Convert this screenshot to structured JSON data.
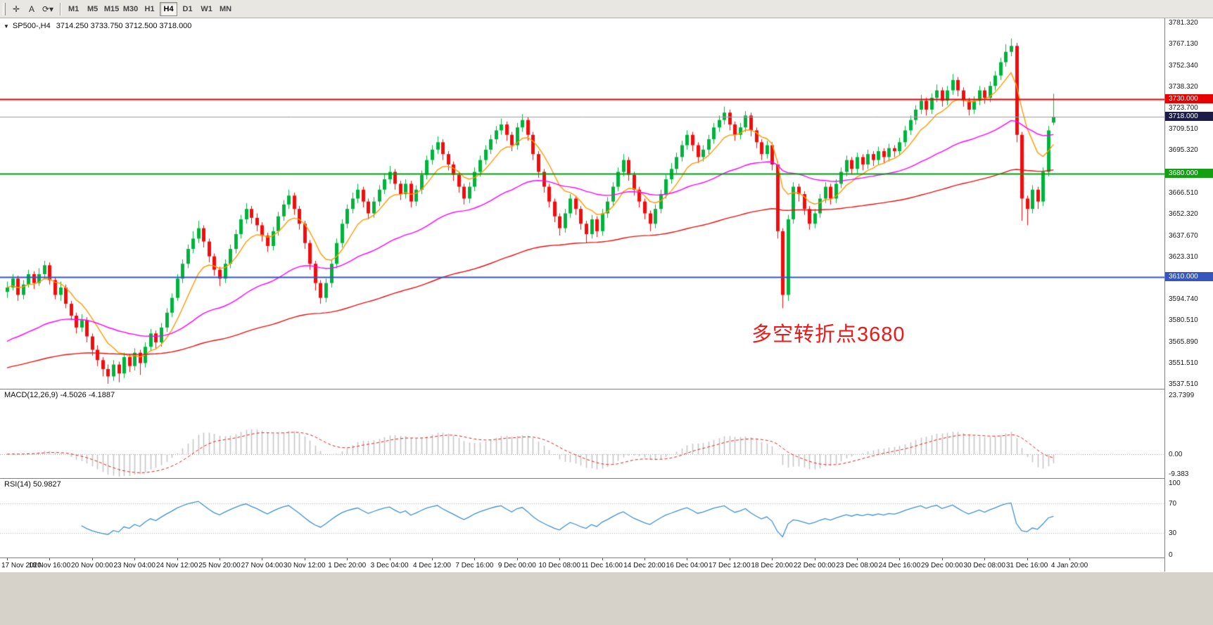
{
  "toolbar": {
    "tools": [
      {
        "name": "crosshair-icon",
        "glyph": "✛"
      },
      {
        "name": "text-tool-icon",
        "glyph": "A"
      },
      {
        "name": "cycles-icon",
        "glyph": "⟳▾"
      }
    ],
    "timeframes": [
      {
        "label": "M1",
        "active": false
      },
      {
        "label": "M5",
        "active": false
      },
      {
        "label": "M15",
        "active": false
      },
      {
        "label": "M30",
        "active": false
      },
      {
        "label": "H1",
        "active": false
      },
      {
        "label": "H4",
        "active": true
      },
      {
        "label": "D1",
        "active": false
      },
      {
        "label": "W1",
        "active": false
      },
      {
        "label": "MN",
        "active": false
      }
    ]
  },
  "chart": {
    "header": {
      "arrow": "▼",
      "symbol": "SP500-,H4",
      "ohlc": "3714.250 3733.750 3712.500 3718.000"
    },
    "annotation": {
      "text": "多空转折点3680",
      "color": "#f31616"
    }
  },
  "panels": {
    "macd": {
      "label": "MACD(12,26,9) -4.5026 -4.1887",
      "axis": [
        {
          "text": "23.7399",
          "value": 23.7399
        },
        {
          "text": "0.00",
          "value": 0
        },
        {
          "text": "-9.383",
          "value": -9.383
        }
      ]
    },
    "rsi": {
      "label": "RSI(14) 50.9827",
      "axis": [
        {
          "text": "100",
          "value": 100
        },
        {
          "text": "70",
          "value": 70
        },
        {
          "text": "30",
          "value": 30
        },
        {
          "text": "0",
          "value": 0
        }
      ]
    }
  },
  "time_axis": [
    "17 Nov 2020",
    "18 Nov 16:00",
    "20 Nov 00:00",
    "23 Nov 04:00",
    "24 Nov 12:00",
    "25 Nov 20:00",
    "27 Nov 04:00",
    "30 Nov 12:00",
    "1 Dec 20:00",
    "3 Dec 04:00",
    "4 Dec 12:00",
    "7 Dec 16:00",
    "9 Dec 00:00",
    "10 Dec 08:00",
    "11 Dec 16:00",
    "14 Dec 20:00",
    "16 Dec 04:00",
    "17 Dec 12:00",
    "18 Dec 20:00",
    "22 Dec 00:00",
    "23 Dec 08:00",
    "24 Dec 16:00",
    "29 Dec 00:00",
    "30 Dec 08:00",
    "31 Dec 16:00",
    "4 Jan 20:00"
  ],
  "chart_data": {
    "type": "candlestick",
    "symbol": "SP500-",
    "timeframe": "H4",
    "last_bar": {
      "open": 3714.25,
      "high": 3733.75,
      "low": 3712.5,
      "close": 3718.0
    },
    "y_range": [
      3537.51,
      3781.32
    ],
    "y_axis_ticks": [
      {
        "text": "3781.320",
        "value": 3781.32
      },
      {
        "text": "3767.130",
        "value": 3767.13
      },
      {
        "text": "3752.340",
        "value": 3752.34
      },
      {
        "text": "3738.320",
        "value": 3738.32
      },
      {
        "text": "3723.700",
        "value": 3723.7
      },
      {
        "text": "3709.510",
        "value": 3709.51
      },
      {
        "text": "3695.320",
        "value": 3695.32
      },
      {
        "text": "3666.510",
        "value": 3666.51
      },
      {
        "text": "3652.320",
        "value": 3652.32
      },
      {
        "text": "3637.670",
        "value": 3637.67
      },
      {
        "text": "3623.310",
        "value": 3623.31
      },
      {
        "text": "3594.740",
        "value": 3594.74
      },
      {
        "text": "3580.510",
        "value": 3580.51
      },
      {
        "text": "3565.890",
        "value": 3565.89
      },
      {
        "text": "3551.510",
        "value": 3551.51
      },
      {
        "text": "3537.510",
        "value": 3537.51
      }
    ],
    "levels": [
      {
        "price": 3730.0,
        "badge": "3730.000",
        "line_color": "#e60000",
        "badge_bg": "#e60000",
        "width": 2
      },
      {
        "price": 3718.0,
        "badge": "3718.000",
        "line_color": "#9a9a9a",
        "badge_bg": "#1c1c46",
        "width": 1
      },
      {
        "price": 3680.0,
        "badge": "3680.000",
        "line_color": "#00a012",
        "badge_bg": "#12a012",
        "width": 2
      },
      {
        "price": 3610.0,
        "badge": "3610.000",
        "line_color": "#3456bd",
        "badge_bg": "#3456bd",
        "width": 2
      }
    ],
    "colors": {
      "up": "#00b33c",
      "down": "#f20c0c",
      "ma_fast": "#ff9900",
      "ma_mid": "#ff00ff",
      "ma_slow": "#e81010",
      "macd_hist": "#c6c6c6",
      "macd_signal": "#e02020",
      "rsi_line": "#3f8fd0",
      "dotted_level": "#b4b4b4"
    },
    "indicators": [
      {
        "name": "MACD",
        "params": [
          12,
          26,
          9
        ],
        "current": [
          -4.5026,
          -4.1887
        ]
      },
      {
        "name": "RSI",
        "params": [
          14
        ],
        "current": 50.9827
      }
    ],
    "candles": [
      [
        3600,
        3607,
        3596,
        3603
      ],
      [
        3603,
        3612,
        3601,
        3609
      ],
      [
        3609,
        3611,
        3594,
        3598
      ],
      [
        3598,
        3608,
        3595,
        3605
      ],
      [
        3605,
        3615,
        3603,
        3612
      ],
      [
        3612,
        3614,
        3602,
        3606
      ],
      [
        3606,
        3616,
        3604,
        3612
      ],
      [
        3612,
        3621,
        3609,
        3618
      ],
      [
        3618,
        3620,
        3605,
        3608
      ],
      [
        3608,
        3610,
        3595,
        3598
      ],
      [
        3598,
        3607,
        3594,
        3603
      ],
      [
        3603,
        3605,
        3589,
        3592
      ],
      [
        3592,
        3594,
        3581,
        3584
      ],
      [
        3584,
        3586,
        3572,
        3576
      ],
      [
        3576,
        3585,
        3573,
        3581
      ],
      [
        3581,
        3583,
        3566,
        3570
      ],
      [
        3570,
        3572,
        3557,
        3561
      ],
      [
        3561,
        3564,
        3550,
        3554
      ],
      [
        3554,
        3556,
        3543,
        3548
      ],
      [
        3548,
        3551,
        3538,
        3543
      ],
      [
        3543,
        3554,
        3540,
        3551
      ],
      [
        3551,
        3553,
        3539,
        3545
      ],
      [
        3545,
        3559,
        3542,
        3556
      ],
      [
        3556,
        3558,
        3546,
        3550
      ],
      [
        3550,
        3562,
        3547,
        3559
      ],
      [
        3559,
        3561,
        3544,
        3552
      ],
      [
        3552,
        3566,
        3549,
        3563
      ],
      [
        3563,
        3575,
        3560,
        3572
      ],
      [
        3572,
        3574,
        3562,
        3566
      ],
      [
        3566,
        3579,
        3563,
        3576
      ],
      [
        3576,
        3589,
        3573,
        3586
      ],
      [
        3586,
        3599,
        3583,
        3596
      ],
      [
        3596,
        3612,
        3594,
        3609
      ],
      [
        3609,
        3622,
        3606,
        3619
      ],
      [
        3619,
        3632,
        3616,
        3629
      ],
      [
        3629,
        3641,
        3626,
        3636
      ],
      [
        3636,
        3648,
        3633,
        3643
      ],
      [
        3643,
        3645,
        3630,
        3634
      ],
      [
        3634,
        3636,
        3620,
        3624
      ],
      [
        3624,
        3626,
        3611,
        3615
      ],
      [
        3615,
        3617,
        3604,
        3609
      ],
      [
        3609,
        3622,
        3606,
        3619
      ],
      [
        3619,
        3632,
        3616,
        3629
      ],
      [
        3629,
        3642,
        3626,
        3639
      ],
      [
        3639,
        3652,
        3636,
        3649
      ],
      [
        3649,
        3660,
        3646,
        3656
      ],
      [
        3656,
        3658,
        3646,
        3650
      ],
      [
        3650,
        3653,
        3641,
        3645
      ],
      [
        3645,
        3647,
        3634,
        3638
      ],
      [
        3638,
        3640,
        3627,
        3631
      ],
      [
        3631,
        3644,
        3628,
        3641
      ],
      [
        3641,
        3654,
        3638,
        3651
      ],
      [
        3651,
        3662,
        3648,
        3659
      ],
      [
        3659,
        3669,
        3656,
        3665
      ],
      [
        3665,
        3667,
        3652,
        3656
      ],
      [
        3656,
        3658,
        3642,
        3646
      ],
      [
        3646,
        3648,
        3629,
        3633
      ],
      [
        3633,
        3635,
        3615,
        3619
      ],
      [
        3619,
        3621,
        3601,
        3606
      ],
      [
        3606,
        3608,
        3592,
        3596
      ],
      [
        3596,
        3609,
        3593,
        3606
      ],
      [
        3606,
        3622,
        3603,
        3619
      ],
      [
        3619,
        3636,
        3616,
        3633
      ],
      [
        3633,
        3649,
        3630,
        3646
      ],
      [
        3646,
        3659,
        3643,
        3656
      ],
      [
        3656,
        3667,
        3653,
        3663
      ],
      [
        3663,
        3673,
        3660,
        3669
      ],
      [
        3669,
        3671,
        3657,
        3661
      ],
      [
        3661,
        3663,
        3649,
        3653
      ],
      [
        3653,
        3664,
        3650,
        3661
      ],
      [
        3661,
        3672,
        3658,
        3669
      ],
      [
        3669,
        3680,
        3666,
        3676
      ],
      [
        3676,
        3685,
        3673,
        3681
      ],
      [
        3681,
        3683,
        3669,
        3673
      ],
      [
        3673,
        3675,
        3662,
        3666
      ],
      [
        3666,
        3676,
        3663,
        3673
      ],
      [
        3673,
        3675,
        3657,
        3661
      ],
      [
        3661,
        3672,
        3658,
        3669
      ],
      [
        3669,
        3682,
        3666,
        3679
      ],
      [
        3679,
        3692,
        3676,
        3689
      ],
      [
        3689,
        3699,
        3686,
        3696
      ],
      [
        3696,
        3705,
        3693,
        3701
      ],
      [
        3701,
        3703,
        3689,
        3693
      ],
      [
        3693,
        3695,
        3682,
        3686
      ],
      [
        3686,
        3688,
        3675,
        3679
      ],
      [
        3679,
        3681,
        3667,
        3671
      ],
      [
        3671,
        3673,
        3659,
        3663
      ],
      [
        3663,
        3674,
        3660,
        3671
      ],
      [
        3671,
        3684,
        3668,
        3681
      ],
      [
        3681,
        3692,
        3678,
        3689
      ],
      [
        3689,
        3699,
        3686,
        3696
      ],
      [
        3696,
        3706,
        3693,
        3703
      ],
      [
        3703,
        3712,
        3700,
        3709
      ],
      [
        3709,
        3717,
        3706,
        3713
      ],
      [
        3713,
        3715,
        3702,
        3706
      ],
      [
        3706,
        3708,
        3695,
        3699
      ],
      [
        3699,
        3714,
        3696,
        3711
      ],
      [
        3711,
        3720,
        3708,
        3716
      ],
      [
        3716,
        3718,
        3702,
        3706
      ],
      [
        3706,
        3708,
        3689,
        3693
      ],
      [
        3693,
        3695,
        3677,
        3681
      ],
      [
        3681,
        3683,
        3667,
        3671
      ],
      [
        3671,
        3673,
        3657,
        3661
      ],
      [
        3661,
        3663,
        3647,
        3651
      ],
      [
        3651,
        3653,
        3638,
        3643
      ],
      [
        3643,
        3656,
        3640,
        3653
      ],
      [
        3653,
        3666,
        3650,
        3663
      ],
      [
        3663,
        3665,
        3652,
        3656
      ],
      [
        3656,
        3658,
        3642,
        3646
      ],
      [
        3646,
        3648,
        3633,
        3639
      ],
      [
        3639,
        3652,
        3636,
        3649
      ],
      [
        3649,
        3651,
        3637,
        3641
      ],
      [
        3641,
        3656,
        3638,
        3653
      ],
      [
        3653,
        3664,
        3650,
        3661
      ],
      [
        3661,
        3674,
        3658,
        3671
      ],
      [
        3671,
        3684,
        3668,
        3681
      ],
      [
        3681,
        3693,
        3678,
        3689
      ],
      [
        3689,
        3691,
        3675,
        3679
      ],
      [
        3679,
        3681,
        3665,
        3669
      ],
      [
        3669,
        3671,
        3657,
        3661
      ],
      [
        3661,
        3663,
        3649,
        3653
      ],
      [
        3653,
        3655,
        3641,
        3646
      ],
      [
        3646,
        3659,
        3643,
        3656
      ],
      [
        3656,
        3669,
        3653,
        3666
      ],
      [
        3666,
        3679,
        3663,
        3676
      ],
      [
        3676,
        3687,
        3673,
        3683
      ],
      [
        3683,
        3694,
        3680,
        3691
      ],
      [
        3691,
        3702,
        3688,
        3699
      ],
      [
        3699,
        3709,
        3696,
        3706
      ],
      [
        3706,
        3708,
        3695,
        3699
      ],
      [
        3699,
        3701,
        3687,
        3691
      ],
      [
        3691,
        3699,
        3688,
        3696
      ],
      [
        3696,
        3706,
        3693,
        3703
      ],
      [
        3703,
        3714,
        3700,
        3711
      ],
      [
        3711,
        3719,
        3708,
        3716
      ],
      [
        3716,
        3725,
        3713,
        3721
      ],
      [
        3721,
        3723,
        3709,
        3713
      ],
      [
        3713,
        3715,
        3702,
        3706
      ],
      [
        3706,
        3714,
        3703,
        3711
      ],
      [
        3711,
        3722,
        3708,
        3719
      ],
      [
        3719,
        3721,
        3705,
        3709
      ],
      [
        3709,
        3711,
        3697,
        3701
      ],
      [
        3701,
        3703,
        3689,
        3693
      ],
      [
        3693,
        3702,
        3690,
        3699
      ],
      [
        3699,
        3701,
        3682,
        3686
      ],
      [
        3686,
        3688,
        3636,
        3641
      ],
      [
        3641,
        3643,
        3589,
        3598
      ],
      [
        3598,
        3652,
        3594,
        3649
      ],
      [
        3649,
        3674,
        3646,
        3671
      ],
      [
        3671,
        3673,
        3661,
        3666
      ],
      [
        3666,
        3668,
        3652,
        3656
      ],
      [
        3656,
        3658,
        3642,
        3646
      ],
      [
        3646,
        3656,
        3643,
        3653
      ],
      [
        3653,
        3666,
        3650,
        3663
      ],
      [
        3663,
        3674,
        3660,
        3671
      ],
      [
        3671,
        3673,
        3659,
        3663
      ],
      [
        3663,
        3676,
        3660,
        3673
      ],
      [
        3673,
        3684,
        3670,
        3681
      ],
      [
        3681,
        3692,
        3678,
        3689
      ],
      [
        3689,
        3691,
        3679,
        3683
      ],
      [
        3683,
        3694,
        3680,
        3691
      ],
      [
        3691,
        3693,
        3682,
        3686
      ],
      [
        3686,
        3696,
        3683,
        3693
      ],
      [
        3693,
        3695,
        3685,
        3689
      ],
      [
        3689,
        3698,
        3686,
        3695
      ],
      [
        3695,
        3697,
        3687,
        3691
      ],
      [
        3691,
        3700,
        3688,
        3697
      ],
      [
        3697,
        3699,
        3691,
        3695
      ],
      [
        3695,
        3704,
        3692,
        3701
      ],
      [
        3701,
        3712,
        3698,
        3709
      ],
      [
        3709,
        3719,
        3706,
        3716
      ],
      [
        3716,
        3726,
        3713,
        3723
      ],
      [
        3723,
        3733,
        3720,
        3729
      ],
      [
        3729,
        3731,
        3719,
        3723
      ],
      [
        3723,
        3734,
        3720,
        3731
      ],
      [
        3731,
        3740,
        3728,
        3736
      ],
      [
        3736,
        3738,
        3725,
        3729
      ],
      [
        3729,
        3739,
        3726,
        3736
      ],
      [
        3736,
        3747,
        3733,
        3743
      ],
      [
        3743,
        3745,
        3732,
        3736
      ],
      [
        3736,
        3738,
        3725,
        3729
      ],
      [
        3729,
        3731,
        3719,
        3723
      ],
      [
        3723,
        3732,
        3720,
        3729
      ],
      [
        3729,
        3739,
        3726,
        3736
      ],
      [
        3736,
        3738,
        3727,
        3731
      ],
      [
        3731,
        3742,
        3728,
        3739
      ],
      [
        3739,
        3749,
        3736,
        3746
      ],
      [
        3746,
        3758,
        3743,
        3755
      ],
      [
        3755,
        3767,
        3752,
        3762
      ],
      [
        3762,
        3771,
        3759,
        3766
      ],
      [
        3766,
        3768,
        3701,
        3706
      ],
      [
        3706,
        3708,
        3648,
        3663
      ],
      [
        3663,
        3665,
        3645,
        3656
      ],
      [
        3656,
        3672,
        3653,
        3669
      ],
      [
        3669,
        3671,
        3656,
        3661
      ],
      [
        3661,
        3684,
        3658,
        3681
      ],
      [
        3681,
        3712,
        3678,
        3709
      ],
      [
        3714.25,
        3733.75,
        3712.5,
        3718.0
      ]
    ]
  }
}
